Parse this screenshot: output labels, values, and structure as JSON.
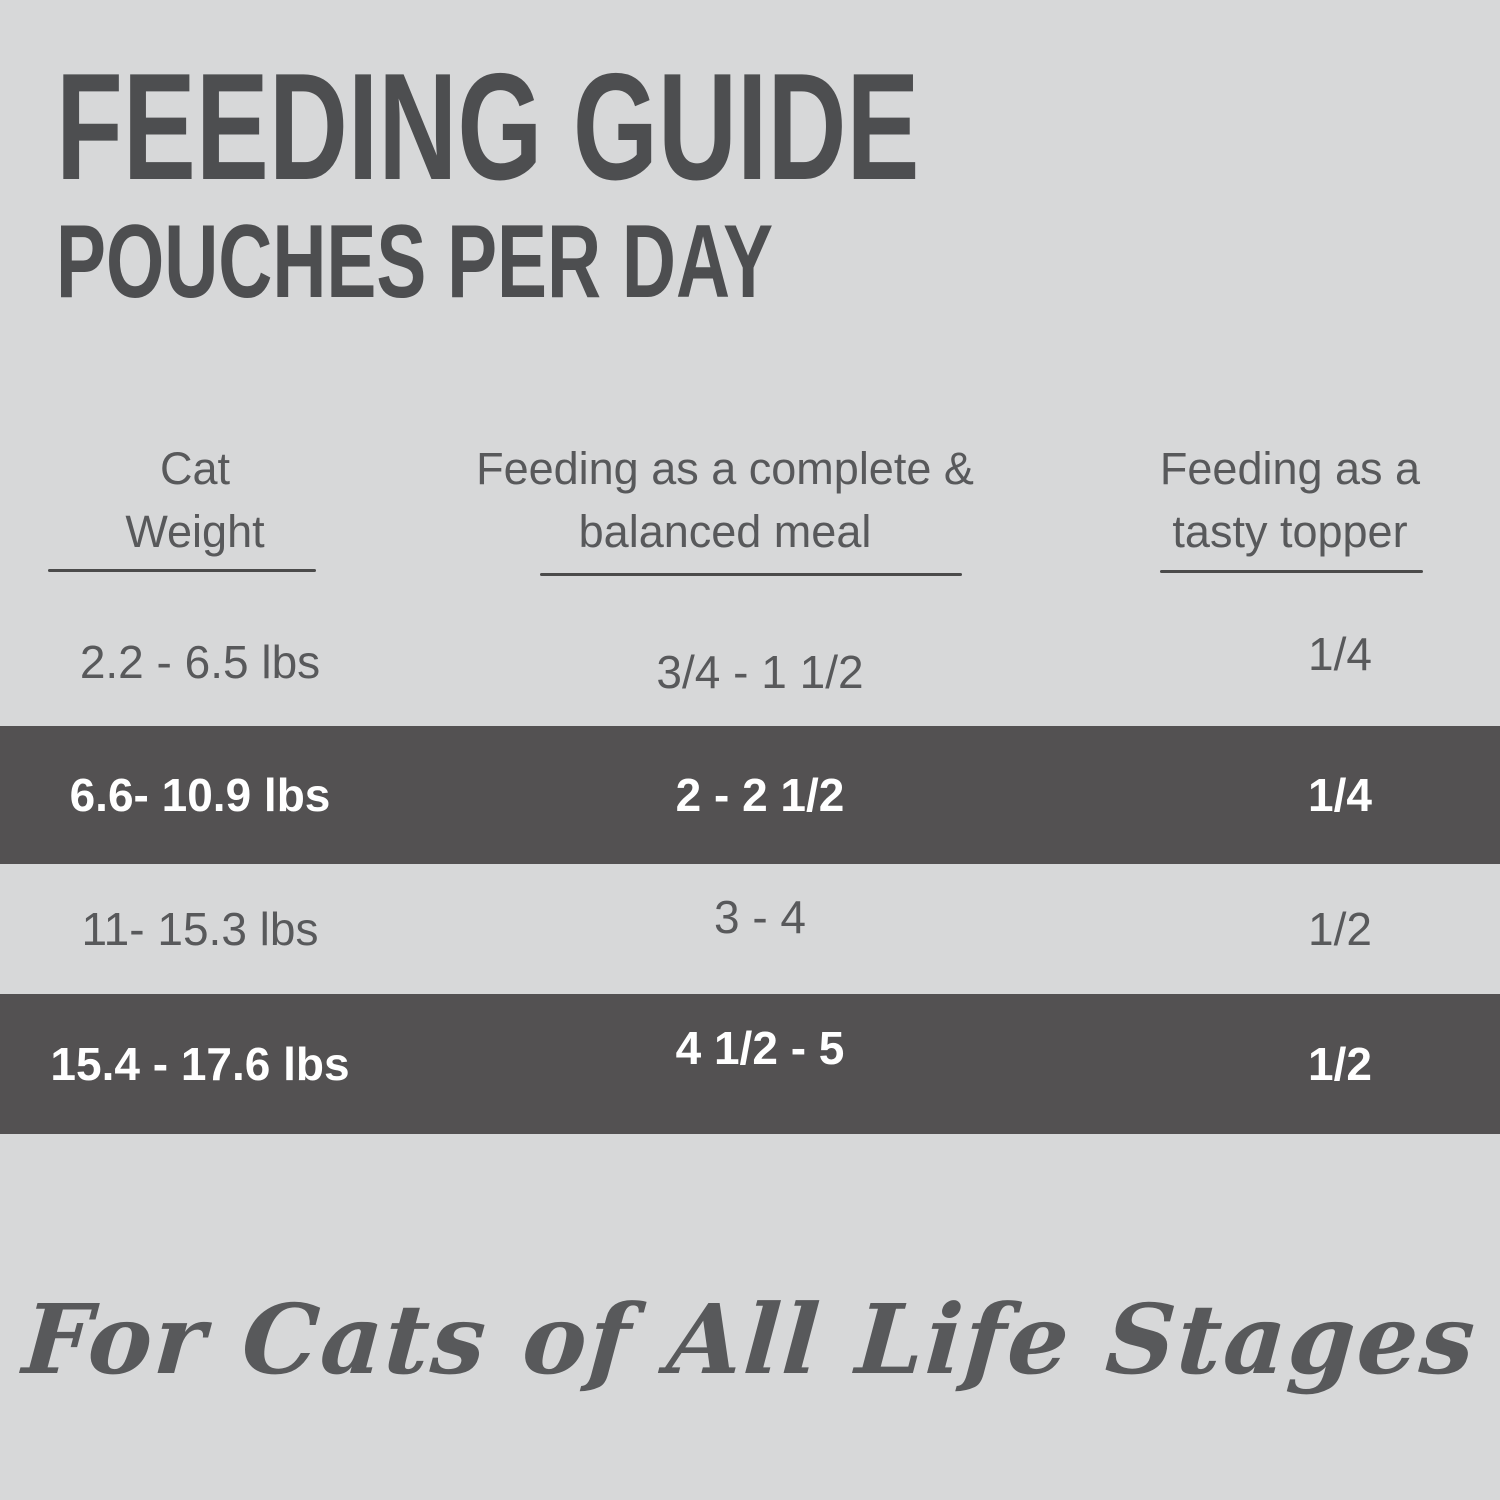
{
  "theme": {
    "bg": "#d7d8d9",
    "band": "#535152",
    "title-ink": "#4d4e50",
    "ink": "#58595b",
    "band-text": "#ffffff",
    "rule": "#4b4b4b"
  },
  "title": {
    "line1": "FEEDING GUIDE",
    "line2": "POUCHES PER DAY"
  },
  "table": {
    "headers": [
      {
        "line1": "Cat",
        "line2": "Weight"
      },
      {
        "line1": "Feeding as a complete &",
        "line2": "balanced meal"
      },
      {
        "line1": "Feeding as a",
        "line2": "tasty topper"
      }
    ],
    "rows": [
      {
        "weight": "2.2 - 6.5 lbs",
        "meal": "3/4 - 1 1/2",
        "topper": "1/4",
        "highlighted": false
      },
      {
        "weight": "6.6- 10.9 lbs",
        "meal": "2 - 2 1/2",
        "topper": "1/4",
        "highlighted": true
      },
      {
        "weight": "11- 15.3 lbs",
        "meal": "3 - 4",
        "topper": "1/2",
        "highlighted": false
      },
      {
        "weight": "15.4 - 17.6 lbs",
        "meal": "4 1/2 - 5",
        "topper": "1/2",
        "highlighted": true
      }
    ]
  },
  "tagline": "For Cats of All Life Stages",
  "chart_data": {
    "type": "table",
    "title": "FEEDING GUIDE",
    "subtitle": "POUCHES PER DAY",
    "columns": [
      "Cat Weight",
      "Feeding as a complete & balanced meal",
      "Feeding as a tasty topper"
    ],
    "rows": [
      [
        "2.2 - 6.5 lbs",
        "3/4 - 1 1/2",
        "1/4"
      ],
      [
        "6.6- 10.9 lbs",
        "2 - 2 1/2",
        "1/4"
      ],
      [
        "11- 15.3 lbs",
        "3 - 4",
        "1/2"
      ],
      [
        "15.4 - 17.6 lbs",
        "4 1/2 - 5",
        "1/2"
      ]
    ],
    "highlighted_row_indices": [
      1,
      3
    ],
    "annotation": "For Cats of All Life Stages",
    "legend_position": "none",
    "grid": false
  }
}
